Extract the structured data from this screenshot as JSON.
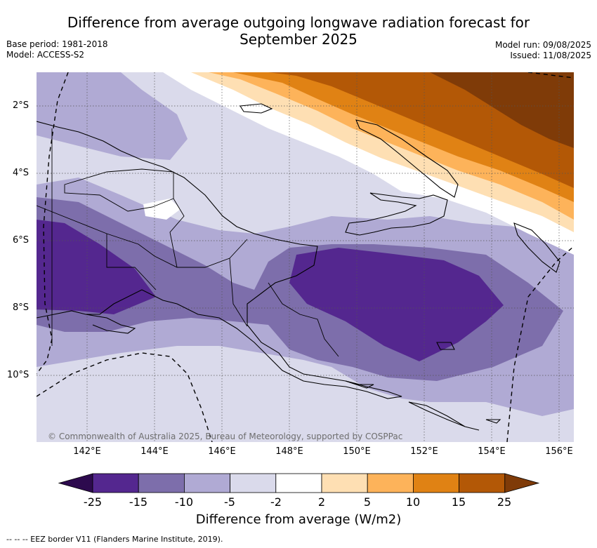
{
  "title_line1": "Difference from average outgoing longwave radiation forecast for",
  "title_line2": "September 2025",
  "base_period": "Base period: 1981-2018",
  "model": "Model: ACCESS-S2",
  "model_run": "Model run: 09/08/2025",
  "issued": "Issued: 11/08/2025",
  "copyright": "© Commonwealth of Australia 2025, Bureau of Meteorology, supported by COSPPac",
  "lat_labels": [
    "2°S",
    "4°S",
    "6°S",
    "8°S",
    "10°S"
  ],
  "lon_labels": [
    "142°E",
    "144°E",
    "146°E",
    "148°E",
    "150°E",
    "152°E",
    "154°E",
    "156°E"
  ],
  "colorbar": {
    "ticks": [
      "-25",
      "-15",
      "-10",
      "-5",
      "-2",
      "2",
      "5",
      "10",
      "15",
      "25"
    ],
    "colors": [
      "#2d0a4e",
      "#54278f",
      "#7d6eab",
      "#b0aad4",
      "#dadaeb",
      "#ffffff",
      "#fedfb3",
      "#fdb35a",
      "#e08214",
      "#b35806",
      "#7f3b08"
    ],
    "label": "Difference from average (W/m2)"
  },
  "footnote": "-- -- -- EEZ border V11 (Flanders Marine Institute, 2019)."
}
